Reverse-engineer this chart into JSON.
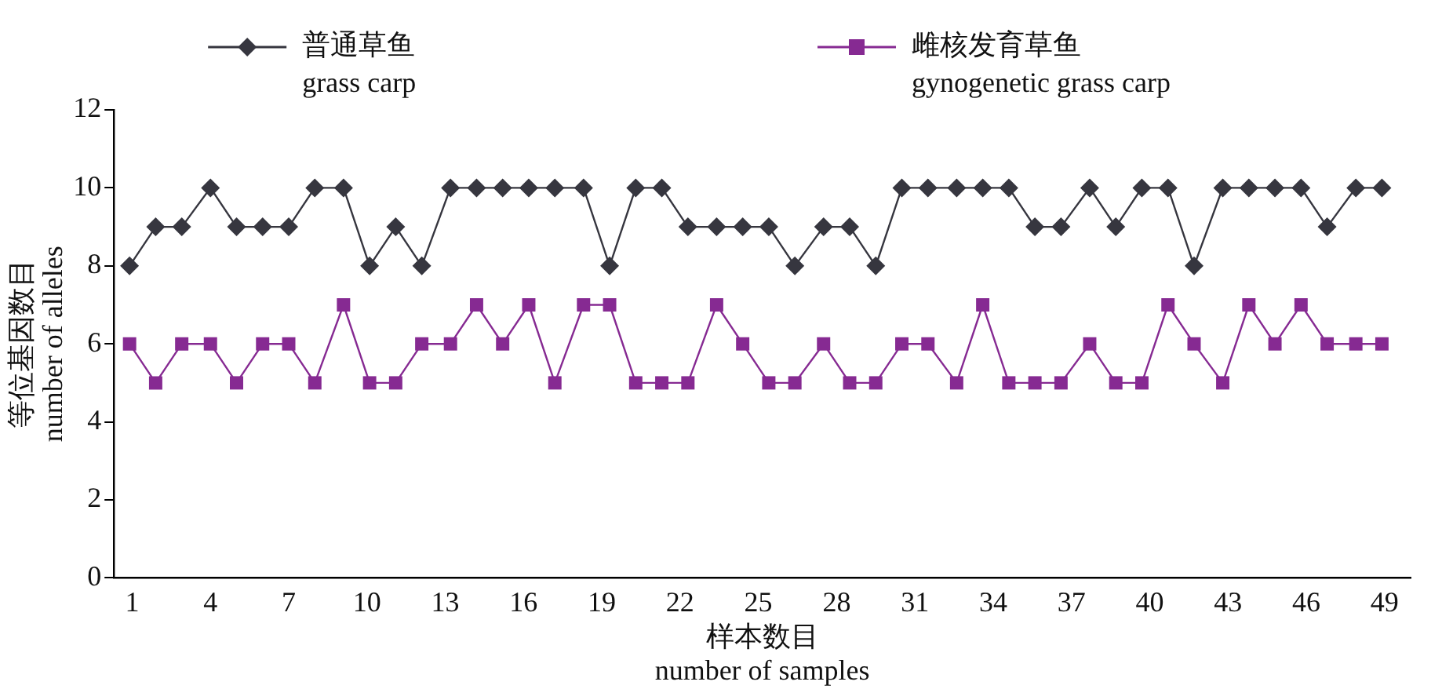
{
  "chart_data": {
    "type": "line",
    "xlabel": "样本数目\nnumber of samples",
    "ylabel": "等位基因数目\nnumber of alleles",
    "x": [
      0.9,
      1.9,
      2.9,
      4.0,
      5.0,
      6.0,
      7.0,
      8.0,
      9.1,
      10.1,
      11.1,
      12.1,
      13.2,
      14.2,
      15.2,
      16.2,
      17.2,
      18.3,
      19.3,
      20.3,
      21.3,
      22.3,
      23.4,
      24.4,
      25.4,
      26.4,
      27.5,
      28.5,
      29.5,
      30.5,
      31.5,
      32.6,
      33.6,
      34.6,
      35.6,
      36.6,
      37.7,
      38.7,
      39.7,
      40.7,
      41.7,
      42.8,
      43.8,
      44.8,
      45.8,
      46.8,
      47.9,
      48.9
    ],
    "series": [
      {
        "name": "普通草鱼\ngrass carp",
        "color": "#36363f",
        "marker": "diamond",
        "values": [
          8,
          9,
          9,
          10,
          9,
          9,
          9,
          10,
          10,
          8,
          9,
          8,
          10,
          10,
          10,
          10,
          10,
          10,
          8,
          10,
          10,
          9,
          9,
          9,
          9,
          8,
          9,
          9,
          8,
          10,
          10,
          10,
          10,
          10,
          9,
          9,
          10,
          9,
          10,
          10,
          8,
          10,
          10,
          10,
          10,
          9,
          10,
          10
        ]
      },
      {
        "name": "雌核发育草鱼\ngynogenetic grass carp",
        "color": "#862a92",
        "marker": "square",
        "values": [
          6,
          5,
          6,
          6,
          5,
          6,
          6,
          5,
          7,
          5,
          5,
          6,
          6,
          7,
          6,
          7,
          5,
          7,
          7,
          5,
          5,
          5,
          7,
          6,
          5,
          5,
          6,
          5,
          5,
          6,
          6,
          5,
          7,
          5,
          5,
          5,
          6,
          5,
          5,
          7,
          6,
          5,
          7,
          6,
          7,
          6,
          6,
          6
        ]
      }
    ],
    "xlim": [
      0.3,
      50
    ],
    "xticks": [
      1,
      4,
      7,
      10,
      13,
      16,
      19,
      22,
      25,
      28,
      31,
      34,
      37,
      40,
      43,
      46,
      49
    ],
    "ylim": [
      0,
      12
    ],
    "yticks": [
      0,
      2,
      4,
      6,
      8,
      10,
      12
    ],
    "grid": false,
    "legend": "top",
    "line_style": "solid"
  }
}
